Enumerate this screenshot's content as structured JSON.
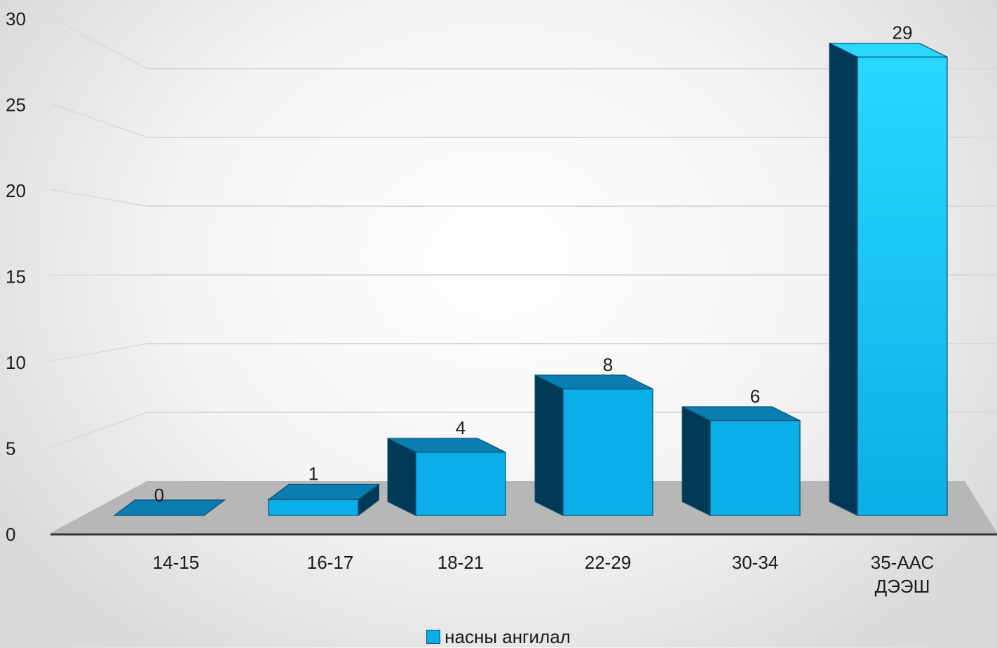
{
  "chart_data": {
    "type": "bar",
    "categories": [
      [
        "14-15"
      ],
      [
        "16-17"
      ],
      [
        "18-21"
      ],
      [
        "22-29"
      ],
      [
        "30-34"
      ],
      [
        "35-ААС",
        "ДЭЭШ"
      ]
    ],
    "series": [
      {
        "name": "насны  ангилал",
        "values": [
          0,
          1,
          4,
          8,
          6,
          29
        ]
      }
    ],
    "data_labels": [
      "0",
      "1",
      "4",
      "8",
      "6",
      "29"
    ],
    "y_ticks": [
      "0",
      "5",
      "10",
      "15",
      "20",
      "25",
      "30"
    ],
    "ylim": [
      0,
      30
    ],
    "grid": true,
    "style": "3d-column",
    "legend_position": "bottom",
    "colors": {
      "front": "#0aaee8",
      "front_tall_top": "#2ad8ff",
      "top": "#0a7eb2",
      "side": "#003a57",
      "floor": "#b7b7b7",
      "grid": "#d9d9d9",
      "axis": "#333333"
    }
  }
}
